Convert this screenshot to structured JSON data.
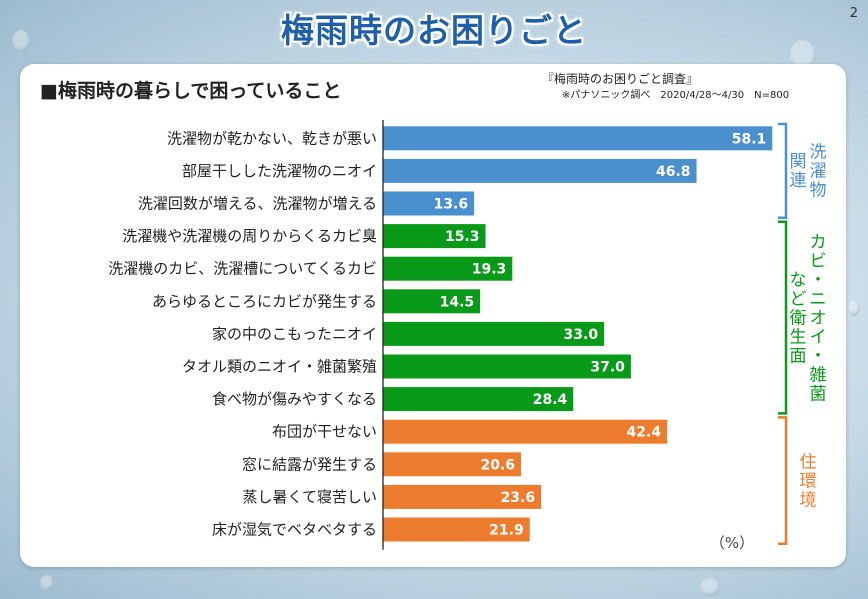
{
  "page": {
    "title": "梅雨時のお困りごと",
    "number": "2"
  },
  "section": {
    "title": "■梅雨時の暮らしで困っていること"
  },
  "survey": {
    "name": "『梅雨時のお困りごと調査』",
    "note": "※パナソニック調べ　2020/4/28〜4/30　N=800"
  },
  "chart_data": {
    "type": "bar",
    "orientation": "horizontal",
    "title": "",
    "xlabel": "",
    "ylabel": "",
    "unit": "（%）",
    "xlim": [
      0,
      60
    ],
    "grid": false,
    "legend": "none",
    "categories": [
      "洗濯物が乾かない、乾きが悪い",
      "部屋干しした洗濯物のニオイ",
      "洗濯回数が増える、洗濯物が増える",
      "洗濯機や洗濯機の周りからくるカビ臭",
      "洗濯機のカビ、洗濯槽についてくるカビ",
      "あらゆるところにカビが発生する",
      "家の中のこもったニオイ",
      "タオル類のニオイ・雑菌繁殖",
      "食べ物が傷みやすくなる",
      "布団が干せない",
      "窓に結露が発生する",
      "蒸し暑くて寝苦しい",
      "床が湿気でベタベタする"
    ],
    "values": [
      58.1,
      46.8,
      13.6,
      15.3,
      19.3,
      14.5,
      33.0,
      37.0,
      28.4,
      42.4,
      20.6,
      23.6,
      21.9
    ],
    "value_labels": [
      "58.1",
      "46.8",
      "13.6",
      "15.3",
      "19.3",
      "14.5",
      "33.0",
      "37.0",
      "28.4",
      "42.4",
      "20.6",
      "23.6",
      "21.9"
    ],
    "groups": [
      {
        "label": "洗濯物関連",
        "columns": [
          "洗濯物",
          "関連"
        ],
        "start": 0,
        "end": 2,
        "color": "#4a8fce"
      },
      {
        "label": "カビ・ニオイ・雑菌など衛生面",
        "columns": [
          "カビ・ニオイ・雑菌",
          "など衛生面"
        ],
        "start": 3,
        "end": 8,
        "color": "#0a9a1a"
      },
      {
        "label": "住環境",
        "columns": [
          "住環境"
        ],
        "start": 9,
        "end": 12,
        "color": "#ee7c2f"
      }
    ]
  }
}
